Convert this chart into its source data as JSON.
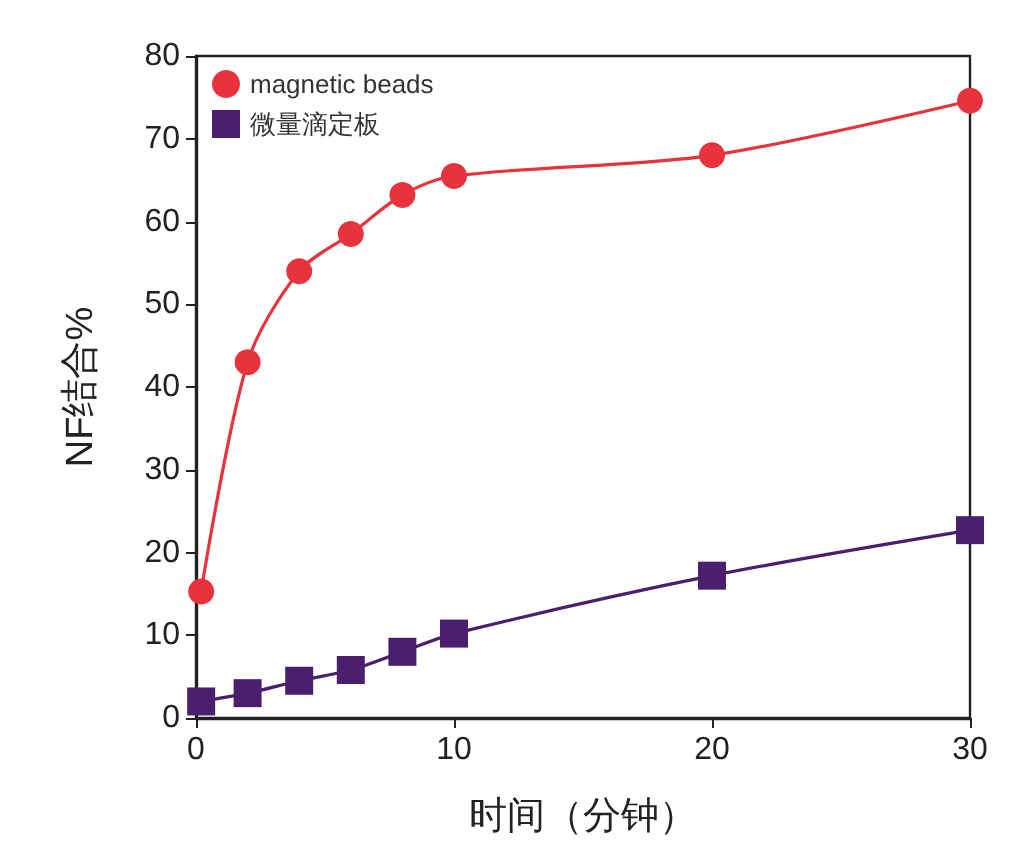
{
  "chart_data": {
    "type": "line",
    "xlabel": "时间（分钟）",
    "ylabel": "NF结合%",
    "x": [
      0.2,
      2,
      4,
      6,
      8,
      10,
      20,
      30
    ],
    "series": [
      {
        "name": "magnetic beads",
        "color": "#e8323c",
        "marker": "circle",
        "values": [
          15.3,
          43,
          54,
          58.5,
          63.2,
          65.5,
          68,
          74.6
        ]
      },
      {
        "name": "微量滴定板",
        "color": "#4b1f6e",
        "marker": "square",
        "values": [
          2,
          3,
          4.5,
          5.8,
          8,
          10.2,
          17.2,
          22.7
        ]
      }
    ],
    "xlim": [
      0,
      30
    ],
    "xticks": [
      0,
      10,
      20,
      30
    ],
    "ylim": [
      0,
      80
    ],
    "yticks": [
      0,
      10,
      20,
      30,
      40,
      50,
      60,
      70,
      80
    ],
    "grid": false,
    "legend": "top left",
    "line_style": "solid"
  }
}
